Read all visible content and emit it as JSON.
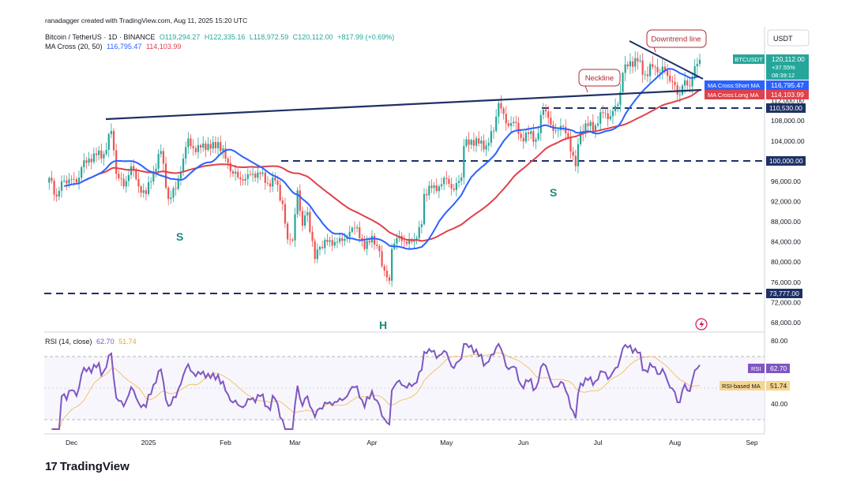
{
  "header": {
    "credit": "ranadagger created with TradingView.com, Aug 11, 2025 15:20 UTC",
    "symbol": "Bitcoin / TetherUS · 1D · BINANCE",
    "ohlc": {
      "o": "O119,294.27",
      "h": "H122,335.16",
      "l": "L118,972.59",
      "c": "C120,112.00",
      "chg": "+817.99 (+0.69%)"
    },
    "ma_title": "MA Cross (20, 50)",
    "ma_short": "116,795.47",
    "ma_long": "114,103.99"
  },
  "colors": {
    "up": "#26a69a",
    "down": "#ef5350",
    "ma_short": "#2962ff",
    "ma_long": "#e0414a",
    "line": "#1e3166",
    "annotation": "#b22833",
    "rsi": "#7e57c2",
    "rsi_ma": "#f2c36b"
  },
  "chart_data": [
    {
      "type": "candlestick",
      "symbol": "BTCUSDT",
      "currency": "USDT",
      "ylim": [
        66000,
        124000
      ],
      "y_ticks": [
        "68,000.00",
        "72,000.00",
        "76,000.00",
        "80,000.00",
        "84,000.00",
        "88,000.00",
        "92,000.00",
        "96,000.00",
        "100,000.00",
        "104,000.00",
        "108,000.00",
        "112,000.00"
      ],
      "x_ticks": [
        "Dec",
        "2025",
        "Feb",
        "Mar",
        "Apr",
        "May",
        "Jun",
        "Jul",
        "Aug",
        "Sep"
      ],
      "closes": [
        [
          [
            "2024-11-22",
            96700
          ],
          [
            "2024-11-25",
            93000
          ],
          [
            "2024-11-27",
            96000
          ],
          [
            "2024-11-30",
            96400
          ],
          [
            "2024-12-03",
            95800
          ],
          [
            "2024-12-05",
            98800
          ],
          [
            "2024-12-08",
            100500
          ],
          [
            "2024-12-11",
            101200
          ],
          [
            "2024-12-14",
            101400
          ],
          [
            "2024-12-17",
            106000
          ],
          [
            "2024-12-19",
            97500
          ],
          [
            "2024-12-22",
            95000
          ],
          [
            "2024-12-25",
            99000
          ],
          [
            "2024-12-28",
            95000
          ],
          [
            "2024-12-31",
            93500
          ],
          [
            "2025-01-03",
            98000
          ],
          [
            "2025-01-06",
            102000
          ],
          [
            "2025-01-09",
            92500
          ],
          [
            "2025-01-12",
            94500
          ],
          [
            "2025-01-15",
            100500
          ],
          [
            "2025-01-17",
            104500
          ],
          [
            "2025-01-20",
            101800
          ],
          [
            "2025-01-23",
            103500
          ],
          [
            "2025-01-26",
            102500
          ],
          [
            "2025-01-29",
            103800
          ],
          [
            "2025-02-01",
            100500
          ],
          [
            "2025-02-03",
            98000
          ],
          [
            "2025-02-06",
            96800
          ],
          [
            "2025-02-09",
            96500
          ],
          [
            "2025-02-12",
            97500
          ],
          [
            "2025-02-15",
            97500
          ],
          [
            "2025-02-18",
            95600
          ],
          [
            "2025-02-21",
            96200
          ],
          [
            "2025-02-24",
            91500
          ],
          [
            "2025-02-26",
            84500
          ],
          [
            "2025-02-28",
            84300
          ],
          [
            "2025-03-02",
            94200
          ],
          [
            "2025-03-04",
            87200
          ],
          [
            "2025-03-06",
            89900
          ],
          [
            "2025-03-09",
            80600
          ],
          [
            "2025-03-11",
            83000
          ],
          [
            "2025-03-14",
            84000
          ],
          [
            "2025-03-17",
            84000
          ],
          [
            "2025-03-20",
            84200
          ],
          [
            "2025-03-23",
            86000
          ],
          [
            "2025-03-26",
            86900
          ],
          [
            "2025-03-29",
            82600
          ],
          [
            "2025-04-01",
            85200
          ],
          [
            "2025-04-03",
            83200
          ],
          [
            "2025-04-06",
            78300
          ],
          [
            "2025-04-08",
            76300
          ],
          [
            "2025-04-09",
            82600
          ],
          [
            "2025-04-12",
            85200
          ],
          [
            "2025-04-15",
            83600
          ],
          [
            "2025-04-18",
            84500
          ],
          [
            "2025-04-21",
            87500
          ],
          [
            "2025-04-22",
            93500
          ],
          [
            "2025-04-25",
            94700
          ],
          [
            "2025-04-28",
            95000
          ],
          [
            "2025-05-01",
            96500
          ],
          [
            "2025-05-04",
            94300
          ],
          [
            "2025-05-07",
            96800
          ],
          [
            "2025-05-08",
            103000
          ],
          [
            "2025-05-11",
            104200
          ],
          [
            "2025-05-14",
            103500
          ],
          [
            "2025-05-17",
            103100
          ],
          [
            "2025-05-20",
            106000
          ],
          [
            "2025-05-22",
            111500
          ],
          [
            "2025-05-25",
            107500
          ],
          [
            "2025-05-28",
            107800
          ],
          [
            "2025-05-31",
            104600
          ],
          [
            "2025-06-03",
            105400
          ],
          [
            "2025-06-06",
            104300
          ],
          [
            "2025-06-09",
            110200
          ],
          [
            "2025-06-11",
            108600
          ],
          [
            "2025-06-13",
            106000
          ],
          [
            "2025-06-16",
            107000
          ],
          [
            "2025-06-19",
            104600
          ],
          [
            "2025-06-22",
            99000
          ],
          [
            "2025-06-24",
            106000
          ],
          [
            "2025-06-27",
            107000
          ],
          [
            "2025-06-30",
            107100
          ],
          [
            "2025-07-03",
            109600
          ],
          [
            "2025-07-06",
            108900
          ],
          [
            "2025-07-09",
            111200
          ],
          [
            "2025-07-11",
            117500
          ],
          [
            "2025-07-14",
            119800
          ],
          [
            "2025-07-17",
            119800
          ],
          [
            "2025-07-20",
            117200
          ],
          [
            "2025-07-23",
            118700
          ],
          [
            "2025-07-25",
            117600
          ],
          [
            "2025-07-28",
            118000
          ],
          [
            "2025-07-31",
            115700
          ],
          [
            "2025-08-02",
            113200
          ],
          [
            "2025-08-04",
            115000
          ],
          [
            "2025-08-06",
            115000
          ],
          [
            "2025-08-08",
            116700
          ],
          [
            "2025-08-10",
            119300
          ],
          [
            "2025-08-11",
            120112
          ]
        ]
      ],
      "price_labels": {
        "last": "120,112.00",
        "change_pct": "+37.55%",
        "countdown": "08:39:12",
        "level_110530": "110,530.00",
        "level_100000": "100,000.00",
        "level_73777": "73,777.00"
      },
      "ma_labels": {
        "short": "MA Cross:Short MA",
        "long": "MA Cross:Long MA"
      },
      "annotations": {
        "downtrend": "Downtrend line",
        "neckline": "Neckline",
        "s_left": "S",
        "s_right": "S",
        "head": "H"
      }
    },
    {
      "type": "line",
      "title": "RSI (14, close)",
      "rsi_value": "62.70",
      "rsi_ma_value": "51.74",
      "ylim": [
        10,
        85
      ],
      "y_ticks": [
        "80.00",
        "40.00"
      ],
      "rsi_label": "RSI",
      "rsi_ma_label": "RSI-based MA"
    }
  ],
  "footer": {
    "brand": "TradingView"
  }
}
